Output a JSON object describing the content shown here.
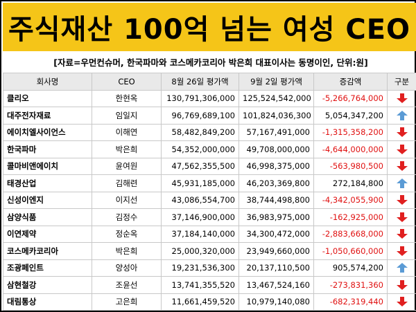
{
  "title": "주식재산 100억 넘는 여성 CEO",
  "source": "[자료=우먼컨슈머, 한국파마와 코스메카코리아 박은희 대표이사는 동명이인, 단위:원]",
  "columns": [
    "회사명",
    "CEO",
    "8월 26일 평가액",
    "9월 2일 평가액",
    "증감액",
    "구분"
  ],
  "colors": {
    "title_bg": "#f5c518",
    "negative": "#e01010",
    "down_arrow": "#e02020",
    "up_arrow": "#5b9bd5"
  },
  "rows": [
    {
      "company": "클리오",
      "ceo": "한현옥",
      "aug26": "130,791,306,000",
      "sep2": "125,524,542,000",
      "change": "-5,266,764,000",
      "direction": "down"
    },
    {
      "company": "대주전자재료",
      "ceo": "임일지",
      "aug26": "96,769,689,100",
      "sep2": "101,824,036,300",
      "change": "5,054,347,200",
      "direction": "up"
    },
    {
      "company": "에이치엘사이언스",
      "ceo": "이해연",
      "aug26": "58,482,849,200",
      "sep2": "57,167,491,000",
      "change": "-1,315,358,200",
      "direction": "down"
    },
    {
      "company": "한국파마",
      "ceo": "박은희",
      "aug26": "54,352,000,000",
      "sep2": "49,708,000,000",
      "change": "-4,644,000,000",
      "direction": "down"
    },
    {
      "company": "콜마비앤에이치",
      "ceo": "윤여원",
      "aug26": "47,562,355,500",
      "sep2": "46,998,375,000",
      "change": "-563,980,500",
      "direction": "down"
    },
    {
      "company": "태경산업",
      "ceo": "김해련",
      "aug26": "45,931,185,000",
      "sep2": "46,203,369,800",
      "change": "272,184,800",
      "direction": "up"
    },
    {
      "company": "신성이엔지",
      "ceo": "이지선",
      "aug26": "43,086,554,700",
      "sep2": "38,744,498,800",
      "change": "-4,342,055,900",
      "direction": "down"
    },
    {
      "company": "삼양식품",
      "ceo": "김정수",
      "aug26": "37,146,900,000",
      "sep2": "36,983,975,000",
      "change": "-162,925,000",
      "direction": "down"
    },
    {
      "company": "이연제약",
      "ceo": "정순옥",
      "aug26": "37,184,140,000",
      "sep2": "34,300,472,000",
      "change": "-2,883,668,000",
      "direction": "down"
    },
    {
      "company": "코스메카코리아",
      "ceo": "박은희",
      "aug26": "25,000,320,000",
      "sep2": "23,949,660,000",
      "change": "-1,050,660,000",
      "direction": "down"
    },
    {
      "company": "조광페인트",
      "ceo": "양성아",
      "aug26": "19,231,536,300",
      "sep2": "20,137,110,500",
      "change": "905,574,200",
      "direction": "up"
    },
    {
      "company": "삼현철강",
      "ceo": "조윤선",
      "aug26": "13,741,355,520",
      "sep2": "13,467,524,160",
      "change": "-273,831,360",
      "direction": "down"
    },
    {
      "company": "대림통상",
      "ceo": "고은희",
      "aug26": "11,661,459,520",
      "sep2": "10,979,140,080",
      "change": "-682,319,440",
      "direction": "down"
    }
  ]
}
